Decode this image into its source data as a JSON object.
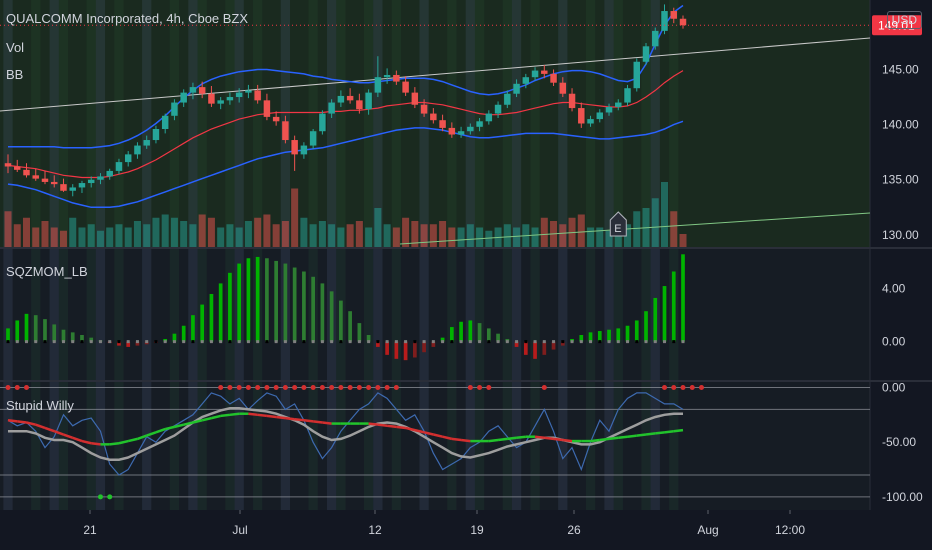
{
  "header": {
    "title": "QUALCOMM Incorporated, 4h, Cboe BZX",
    "vol_label": "Vol",
    "bb_label": "BB",
    "currency": "USD",
    "earnings_marker": "E"
  },
  "panes": {
    "momentum_label": "SQZMOM_LB",
    "willy_label": "Stupid Willy"
  },
  "colors": {
    "bg": "#131722",
    "up": "#26a69a",
    "down": "#ef5350",
    "bb_band": "#2962ff",
    "bb_basis": "#f23645",
    "price_tag": "#f23645",
    "mom_up": "#00b300",
    "mom_down": "#b71c1c",
    "willy_fast": "#3d6ab0",
    "willy_slow": "#9e9e9e",
    "willy_signal_up": "#22c32c",
    "willy_signal_down": "#d32f2f"
  },
  "chart_data": {
    "type": "candlestick",
    "x_ticks": [
      "21",
      "Jul",
      "12",
      "19",
      "26",
      "Aug",
      "12:00"
    ],
    "price_axis": {
      "ticks": [
        "145.00",
        "140.00",
        "135.00",
        "130.00"
      ],
      "ylim": [
        128.9,
        151.3
      ]
    },
    "last_price": "149.01",
    "candles": [
      [
        136.5,
        137.3,
        135.6,
        136.2
      ],
      [
        136.2,
        136.8,
        135.7,
        135.9
      ],
      [
        135.9,
        136.5,
        135.2,
        135.4
      ],
      [
        135.4,
        136.0,
        134.9,
        135.1
      ],
      [
        135.1,
        135.8,
        134.6,
        134.8
      ],
      [
        134.8,
        135.4,
        134.3,
        134.6
      ],
      [
        134.6,
        135.1,
        133.9,
        134.0
      ],
      [
        134.0,
        134.6,
        133.5,
        134.3
      ],
      [
        134.3,
        134.9,
        133.8,
        134.7
      ],
      [
        134.7,
        135.3,
        134.3,
        135.0
      ],
      [
        135.0,
        135.6,
        134.6,
        135.3
      ],
      [
        135.3,
        136.0,
        135.0,
        135.8
      ],
      [
        135.8,
        136.9,
        135.5,
        136.6
      ],
      [
        136.6,
        137.6,
        136.2,
        137.3
      ],
      [
        137.3,
        138.4,
        136.9,
        138.1
      ],
      [
        138.1,
        139.0,
        137.8,
        138.6
      ],
      [
        138.6,
        139.9,
        138.3,
        139.6
      ],
      [
        139.6,
        141.0,
        139.2,
        140.8
      ],
      [
        140.8,
        142.3,
        140.4,
        142.0
      ],
      [
        142.0,
        143.2,
        141.6,
        142.9
      ],
      [
        142.9,
        143.8,
        142.3,
        143.4
      ],
      [
        143.4,
        143.9,
        142.4,
        142.8
      ],
      [
        142.8,
        143.5,
        141.6,
        141.9
      ],
      [
        141.9,
        142.5,
        141.4,
        142.2
      ],
      [
        142.2,
        142.9,
        141.8,
        142.5
      ],
      [
        142.5,
        143.3,
        142.0,
        142.9
      ],
      [
        142.9,
        143.6,
        142.4,
        143.1
      ],
      [
        143.1,
        143.6,
        141.9,
        142.2
      ],
      [
        142.2,
        142.8,
        140.4,
        140.7
      ],
      [
        140.7,
        141.2,
        139.9,
        140.3
      ],
      [
        140.3,
        140.8,
        138.3,
        138.6
      ],
      [
        138.6,
        139.0,
        135.8,
        137.3
      ],
      [
        137.3,
        138.4,
        136.9,
        138.1
      ],
      [
        138.1,
        139.6,
        137.8,
        139.4
      ],
      [
        139.4,
        141.3,
        139.1,
        141.0
      ],
      [
        141.0,
        142.3,
        140.6,
        142.0
      ],
      [
        142.0,
        143.1,
        141.6,
        142.6
      ],
      [
        142.6,
        143.3,
        141.9,
        142.2
      ],
      [
        142.2,
        142.8,
        141.0,
        141.4
      ],
      [
        141.4,
        143.2,
        140.9,
        142.9
      ],
      [
        142.9,
        146.2,
        142.5,
        144.3
      ],
      [
        144.3,
        145.1,
        143.7,
        144.5
      ],
      [
        144.5,
        144.9,
        143.6,
        143.9
      ],
      [
        143.9,
        144.4,
        142.6,
        142.9
      ],
      [
        142.9,
        143.4,
        141.5,
        141.8
      ],
      [
        141.8,
        142.3,
        140.7,
        141.0
      ],
      [
        141.0,
        141.5,
        140.1,
        140.4
      ],
      [
        140.4,
        140.9,
        139.4,
        139.7
      ],
      [
        139.7,
        140.2,
        138.8,
        139.1
      ],
      [
        139.1,
        139.8,
        138.8,
        139.4
      ],
      [
        139.4,
        140.1,
        139.1,
        139.8
      ],
      [
        139.8,
        140.6,
        139.4,
        140.3
      ],
      [
        140.3,
        141.3,
        140.0,
        141.0
      ],
      [
        141.0,
        142.1,
        140.6,
        141.8
      ],
      [
        141.8,
        143.1,
        141.5,
        142.8
      ],
      [
        142.8,
        144.1,
        142.5,
        143.7
      ],
      [
        143.7,
        144.6,
        143.3,
        144.3
      ],
      [
        144.3,
        145.2,
        144.0,
        144.9
      ],
      [
        144.9,
        145.4,
        144.2,
        144.6
      ],
      [
        144.6,
        145.0,
        143.5,
        143.8
      ],
      [
        143.8,
        144.3,
        142.5,
        142.8
      ],
      [
        142.8,
        143.3,
        141.2,
        141.5
      ],
      [
        141.5,
        142.0,
        139.7,
        140.1
      ],
      [
        140.1,
        140.8,
        139.8,
        140.5
      ],
      [
        140.5,
        141.4,
        140.2,
        141.1
      ],
      [
        141.1,
        141.9,
        140.8,
        141.6
      ],
      [
        141.6,
        142.3,
        141.3,
        142.0
      ],
      [
        142.0,
        143.6,
        141.7,
        143.3
      ],
      [
        143.3,
        146.0,
        143.0,
        145.7
      ],
      [
        145.7,
        147.4,
        145.4,
        147.1
      ],
      [
        147.1,
        148.8,
        146.8,
        148.5
      ],
      [
        148.5,
        150.9,
        148.2,
        150.3
      ],
      [
        150.3,
        150.6,
        149.2,
        149.6
      ],
      [
        149.6,
        149.9,
        148.7,
        149.01
      ]
    ],
    "bb_upper": [
      138.0,
      138.0,
      138.0,
      138.0,
      138.0,
      138.0,
      137.9,
      137.9,
      137.9,
      137.9,
      138.0,
      138.1,
      138.3,
      138.6,
      139.0,
      139.5,
      140.1,
      140.8,
      141.6,
      142.4,
      143.1,
      143.7,
      144.1,
      144.4,
      144.6,
      144.8,
      144.9,
      145.0,
      145.0,
      144.9,
      144.8,
      144.7,
      144.6,
      144.4,
      144.3,
      144.1,
      144.0,
      143.9,
      143.8,
      143.8,
      143.9,
      144.0,
      144.1,
      144.2,
      144.2,
      144.2,
      144.1,
      143.9,
      143.6,
      143.3,
      143.0,
      142.8,
      142.7,
      142.8,
      143.0,
      143.3,
      143.6,
      144.0,
      144.3,
      144.6,
      144.8,
      144.9,
      144.9,
      144.8,
      144.6,
      144.3,
      144.0,
      143.9,
      144.2,
      145.5,
      147.3,
      149.0,
      150.2,
      150.8
    ],
    "bb_basis": [
      136.3,
      136.2,
      136.1,
      136.0,
      135.8,
      135.6,
      135.4,
      135.3,
      135.2,
      135.2,
      135.2,
      135.3,
      135.5,
      135.7,
      136.0,
      136.4,
      136.8,
      137.3,
      137.8,
      138.3,
      138.8,
      139.2,
      139.6,
      139.9,
      140.2,
      140.5,
      140.7,
      140.9,
      141.0,
      141.1,
      141.1,
      141.1,
      141.1,
      141.1,
      141.1,
      141.2,
      141.2,
      141.3,
      141.3,
      141.4,
      141.5,
      141.7,
      141.8,
      141.9,
      142.0,
      142.0,
      141.9,
      141.8,
      141.6,
      141.4,
      141.2,
      141.0,
      140.9,
      140.9,
      141.0,
      141.1,
      141.3,
      141.5,
      141.7,
      141.9,
      142.0,
      142.0,
      141.9,
      141.8,
      141.7,
      141.6,
      141.6,
      141.7,
      142.0,
      142.5,
      143.1,
      143.8,
      144.4,
      144.9
    ],
    "bb_lower": [
      134.6,
      134.5,
      134.3,
      134.1,
      133.8,
      133.5,
      133.2,
      132.9,
      132.7,
      132.5,
      132.5,
      132.5,
      132.6,
      132.8,
      133.0,
      133.3,
      133.6,
      133.9,
      134.2,
      134.5,
      134.8,
      135.1,
      135.4,
      135.7,
      136.0,
      136.3,
      136.6,
      136.9,
      137.1,
      137.3,
      137.5,
      137.6,
      137.7,
      137.8,
      137.9,
      138.1,
      138.3,
      138.5,
      138.7,
      138.9,
      139.1,
      139.3,
      139.5,
      139.6,
      139.7,
      139.7,
      139.6,
      139.5,
      139.3,
      139.1,
      138.9,
      138.8,
      138.8,
      138.9,
      139.0,
      139.1,
      139.2,
      139.2,
      139.2,
      139.2,
      139.1,
      139.0,
      138.9,
      138.8,
      138.7,
      138.7,
      138.8,
      138.9,
      139.0,
      139.1,
      139.3,
      139.6,
      140.0,
      140.3
    ],
    "volume": [
      0.55,
      0.35,
      0.45,
      0.3,
      0.4,
      0.3,
      0.25,
      0.45,
      0.3,
      0.35,
      0.25,
      0.3,
      0.35,
      0.3,
      0.4,
      0.35,
      0.45,
      0.5,
      0.45,
      0.4,
      0.35,
      0.5,
      0.45,
      0.3,
      0.35,
      0.3,
      0.4,
      0.45,
      0.5,
      0.35,
      0.4,
      0.9,
      0.45,
      0.35,
      0.4,
      0.35,
      0.3,
      0.35,
      0.4,
      0.3,
      0.6,
      0.35,
      0.3,
      0.45,
      0.4,
      0.35,
      0.35,
      0.4,
      0.3,
      0.3,
      0.35,
      0.3,
      0.25,
      0.3,
      0.35,
      0.3,
      0.35,
      0.3,
      0.45,
      0.4,
      0.35,
      0.45,
      0.5,
      0.3,
      0.3,
      0.25,
      0.3,
      0.35,
      0.55,
      0.6,
      0.75,
      1.0,
      0.55,
      0.2
    ],
    "momentum": {
      "ticks": [
        "4.00",
        "0.00"
      ],
      "ylim": [
        -2.9,
        7.0
      ],
      "values": [
        1.0,
        1.6,
        2.1,
        2.0,
        1.7,
        1.3,
        0.9,
        0.7,
        0.5,
        0.3,
        0.1,
        -0.1,
        -0.3,
        -0.4,
        -0.3,
        -0.2,
        -0.1,
        0.2,
        0.6,
        1.2,
        2.0,
        2.8,
        3.6,
        4.4,
        5.2,
        5.9,
        6.3,
        6.4,
        6.3,
        6.1,
        5.9,
        5.6,
        5.3,
        4.9,
        4.4,
        3.8,
        3.1,
        2.3,
        1.4,
        0.5,
        -0.4,
        -1.0,
        -1.3,
        -1.4,
        -1.2,
        -0.8,
        -0.4,
        0.3,
        1.1,
        1.5,
        1.6,
        1.4,
        1.0,
        0.6,
        0.2,
        -0.4,
        -1.0,
        -1.3,
        -1.0,
        -0.6,
        -0.3,
        0.2,
        0.5,
        0.7,
        0.8,
        0.9,
        1.0,
        1.2,
        1.6,
        2.3,
        3.3,
        4.2,
        5.3,
        6.6
      ]
    },
    "stupid_willy": {
      "ticks": [
        "0.00",
        "-50.00",
        "-100.00"
      ],
      "ylim": [
        -112,
        5
      ],
      "fast": [
        -30,
        -35,
        -32,
        -40,
        -55,
        -45,
        -25,
        -35,
        -30,
        -28,
        -40,
        -70,
        -80,
        -75,
        -60,
        -45,
        -50,
        -40,
        -35,
        -30,
        -25,
        -15,
        -5,
        -8,
        -15,
        -10,
        -20,
        -12,
        -5,
        -8,
        -20,
        -15,
        -30,
        -50,
        -65,
        -55,
        -40,
        -30,
        -20,
        -15,
        -5,
        -10,
        -20,
        -30,
        -25,
        -40,
        -60,
        -75,
        -70,
        -65,
        -55,
        -50,
        -40,
        -35,
        -45,
        -55,
        -50,
        -35,
        -20,
        -40,
        -65,
        -55,
        -75,
        -50,
        -30,
        -40,
        -20,
        -10,
        -5,
        -5,
        -10,
        -15,
        -15,
        -20
      ],
      "slow": [
        -40,
        -40,
        -40,
        -42,
        -46,
        -48,
        -48,
        -50,
        -55,
        -60,
        -64,
        -66,
        -66,
        -64,
        -60,
        -56,
        -52,
        -48,
        -44,
        -38,
        -32,
        -27,
        -24,
        -21,
        -19,
        -19,
        -20,
        -21,
        -22,
        -24,
        -27,
        -30,
        -34,
        -40,
        -45,
        -48,
        -47,
        -44,
        -40,
        -36,
        -33,
        -32,
        -33,
        -36,
        -40,
        -45,
        -50,
        -55,
        -60,
        -63,
        -64,
        -62,
        -60,
        -57,
        -54,
        -52,
        -50,
        -48,
        -46,
        -46,
        -48,
        -50,
        -52,
        -52,
        -50,
        -46,
        -42,
        -38,
        -34,
        -30,
        -27,
        -25,
        -24,
        -24
      ],
      "signal": [
        -30,
        -31,
        -32,
        -34,
        -37,
        -40,
        -43,
        -46,
        -49,
        -51,
        -52,
        -52,
        -51,
        -49,
        -47,
        -44,
        -41,
        -38,
        -36,
        -34,
        -32,
        -30,
        -28,
        -26,
        -25,
        -24,
        -24,
        -25,
        -26,
        -27,
        -28,
        -29,
        -30,
        -31,
        -32,
        -33,
        -33,
        -33,
        -33,
        -33,
        -34,
        -35,
        -36,
        -37,
        -39,
        -41,
        -43,
        -45,
        -47,
        -48,
        -49,
        -49,
        -49,
        -48,
        -47,
        -46,
        -45,
        -45,
        -46,
        -47,
        -48,
        -49,
        -49,
        -49,
        -48,
        -47,
        -46,
        -45,
        -44,
        -43,
        -42,
        -41,
        -40,
        -39
      ],
      "top_marker_positions": [
        0,
        1,
        2,
        23,
        24,
        25,
        26,
        27,
        28,
        29,
        30,
        31,
        32,
        33,
        34,
        35,
        36,
        37,
        38,
        39,
        40,
        41,
        42,
        50,
        51,
        52,
        58,
        71,
        72,
        73,
        74,
        75
      ],
      "bottom_marker_positions": [
        10,
        11
      ]
    }
  }
}
